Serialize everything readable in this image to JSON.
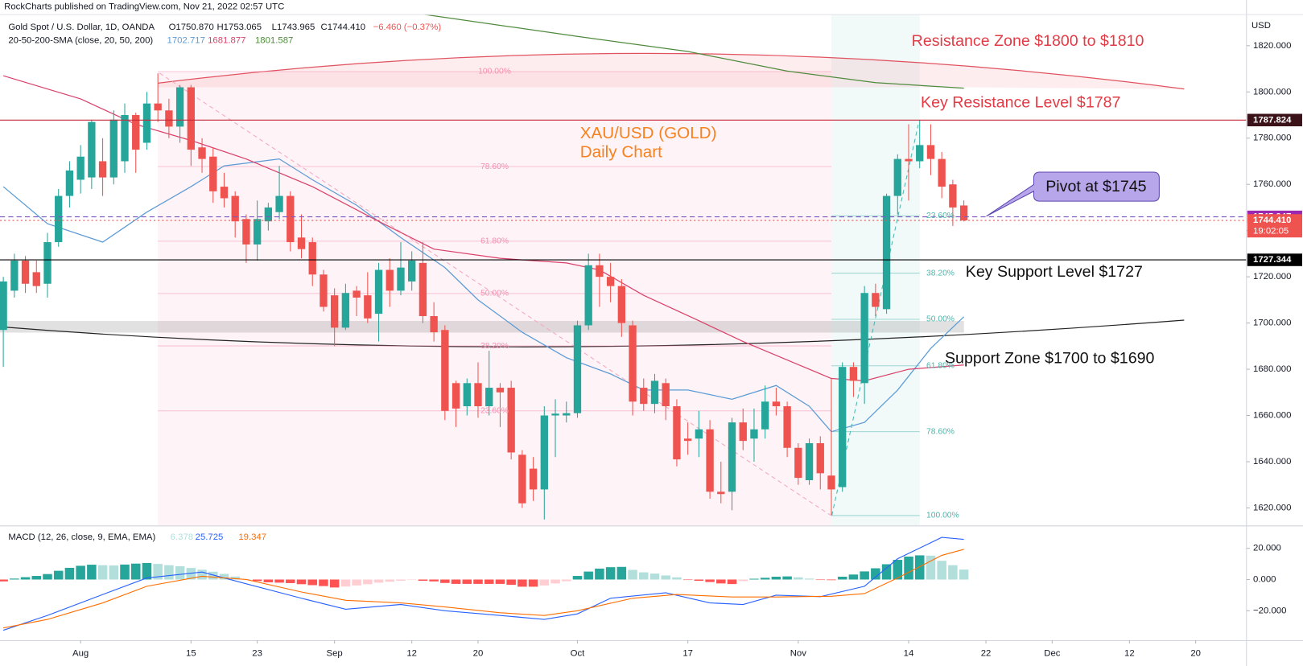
{
  "chart_data": {
    "type": "candlestick",
    "published": "RockCharts published on TradingView.com, Nov 21, 2022 02:57 UTC",
    "title": "Gold Spot / U.S. Dollar, 1D, OANDA",
    "ohlc_legend": [
      "O1750.870",
      "H1753.065",
      "L1743.965",
      "C1744.410",
      "−6.460 (−0.37%)"
    ],
    "y_unit": "USD",
    "up_color": "#26a69a",
    "down_color": "#ef5350",
    "grid": false,
    "xlim": [
      -0.3,
      112.6
    ],
    "xticks": [
      {
        "value": 7,
        "label": "Aug"
      },
      {
        "value": 17,
        "label": "15"
      },
      {
        "value": 23,
        "label": "23"
      },
      {
        "value": 30,
        "label": "Sep"
      },
      {
        "value": 37,
        "label": "12"
      },
      {
        "value": 43,
        "label": "20"
      },
      {
        "value": 52,
        "label": "Oct"
      },
      {
        "value": 62,
        "label": "17"
      },
      {
        "value": 72,
        "label": "Nov"
      },
      {
        "value": 82,
        "label": "14"
      },
      {
        "value": 89,
        "label": "22"
      },
      {
        "value": 95,
        "label": "Dec"
      },
      {
        "value": 102,
        "label": "12"
      },
      {
        "value": 108,
        "label": "20"
      }
    ],
    "ylim": [
      1612.4,
      1833.3
    ],
    "yticks": [
      {
        "value": 1620,
        "label": "1620.000"
      },
      {
        "value": 1640,
        "label": "1640.000"
      },
      {
        "value": 1660,
        "label": "1660.000"
      },
      {
        "value": 1680,
        "label": "1680.000"
      },
      {
        "value": 1700,
        "label": "1700.000"
      },
      {
        "value": 1720,
        "label": "1720.000"
      },
      {
        "value": 1740,
        "label": "1740.000"
      },
      {
        "value": 1760,
        "label": "1760.000"
      },
      {
        "value": 1780,
        "label": "1780.000"
      },
      {
        "value": 1800,
        "label": "1800.000"
      },
      {
        "value": 1820,
        "label": "1820.000"
      }
    ],
    "open": [
      1697,
      1714,
      1727,
      1722,
      1717,
      1735,
      1755,
      1762,
      1763,
      1770,
      1763,
      1770,
      1790,
      1778,
      1795,
      1792,
      1785,
      1802,
      1776,
      1772,
      1759,
      1755,
      1745,
      1734,
      1744,
      1748,
      1755,
      1737,
      1735,
      1721,
      1712,
      1698,
      1714,
      1712,
      1704,
      1723,
      1714,
      1718,
      1726,
      1703,
      1697,
      1674,
      1664,
      1674,
      1664,
      1672,
      1672,
      1643,
      1637,
      1628,
      1660,
      1660,
      1661,
      1699,
      1725,
      1720,
      1716,
      1699,
      1672,
      1665,
      1674,
      1664,
      1650,
      1650,
      1654,
      1627,
      1627,
      1657,
      1650,
      1654,
      1666,
      1664,
      1646,
      1632,
      1648,
      1634,
      1629,
      1681,
      1674,
      1713,
      1706,
      1755,
      1771,
      1770,
      1777,
      1771,
      1760,
      1750.87
    ],
    "high": [
      1720,
      1730,
      1729,
      1727,
      1739,
      1758,
      1770,
      1777,
      1788,
      1780,
      1792,
      1795,
      1791,
      1800,
      1808,
      1797,
      1803,
      1803,
      1780,
      1776,
      1765,
      1757,
      1747,
      1753,
      1752,
      1768,
      1757,
      1747,
      1737,
      1723,
      1715,
      1717,
      1716,
      1722,
      1726,
      1728,
      1735,
      1731,
      1735,
      1709,
      1699,
      1675,
      1676,
      1683,
      1688,
      1674,
      1675,
      1645,
      1642,
      1664,
      1667,
      1666,
      1701,
      1730,
      1730,
      1726,
      1719,
      1701,
      1676,
      1678,
      1676,
      1667,
      1657,
      1662,
      1658,
      1640,
      1659,
      1663,
      1663,
      1673,
      1672,
      1666,
      1648,
      1650,
      1651,
      1676,
      1683,
      1683,
      1716,
      1717,
      1756,
      1773,
      1786,
      1787.8,
      1786,
      1774,
      1762,
      1753.065
    ],
    "low": [
      1681,
      1711,
      1713,
      1713,
      1711,
      1733,
      1750,
      1756,
      1758,
      1755,
      1760,
      1765,
      1765,
      1775,
      1787,
      1780,
      1778,
      1768,
      1765,
      1752,
      1750,
      1737,
      1726,
      1727,
      1740,
      1745,
      1731,
      1728,
      1716,
      1705,
      1690,
      1697,
      1703,
      1700,
      1692,
      1707,
      1712,
      1714,
      1700,
      1692,
      1658,
      1655,
      1660,
      1659,
      1660,
      1655,
      1641,
      1620,
      1623,
      1615,
      1642,
      1657,
      1659,
      1697,
      1707,
      1709,
      1694,
      1660,
      1662,
      1661,
      1658,
      1638,
      1643,
      1642,
      1624,
      1622,
      1619,
      1645,
      1640,
      1650,
      1660,
      1642,
      1630,
      1630,
      1628,
      1617,
      1627,
      1668,
      1665,
      1703,
      1704,
      1747,
      1753,
      1767,
      1764,
      1754,
      1742,
      1743.965
    ],
    "close": [
      1718,
      1727,
      1717,
      1716,
      1735,
      1755,
      1766,
      1772,
      1787,
      1763,
      1788,
      1790,
      1775,
      1795,
      1792,
      1785,
      1802,
      1775,
      1771,
      1757,
      1754,
      1744,
      1734,
      1745,
      1750,
      1755,
      1735,
      1732,
      1721,
      1707,
      1698,
      1713,
      1711,
      1702,
      1723,
      1714,
      1724,
      1727,
      1703,
      1696,
      1662,
      1663,
      1674,
      1664,
      1672,
      1670,
      1644,
      1622,
      1628,
      1660,
      1660.8,
      1661,
      1699,
      1725,
      1720,
      1716,
      1700,
      1666,
      1665,
      1675,
      1664,
      1641,
      1649,
      1654,
      1627,
      1626,
      1657,
      1649,
      1654,
      1666,
      1664,
      1646,
      1633,
      1648,
      1635,
      1628,
      1681,
      1675,
      1713,
      1707,
      1755,
      1771,
      1770,
      1777,
      1771,
      1759,
      1750,
      1744.41
    ],
    "sma": {
      "label": "20-50-200-SMA (close, 20, 50, 200)",
      "series": [
        {
          "color": "#5b9bd5",
          "x": [
            0,
            4,
            9,
            13,
            17,
            20,
            25,
            28,
            32,
            36,
            40,
            43,
            47,
            51,
            55,
            58,
            62,
            66,
            70,
            73,
            75,
            78,
            81,
            84,
            87
          ],
          "values": [
            1759,
            1743,
            1735,
            1748,
            1759,
            1768,
            1771,
            1762,
            1751,
            1737,
            1724,
            1710,
            1696,
            1685,
            1678,
            1671,
            1671,
            1667,
            1673,
            1664,
            1653,
            1657,
            1671,
            1689,
            1702.717
          ]
        },
        {
          "color": "#d9416b",
          "x": [
            0,
            7,
            12,
            17,
            22,
            28,
            34,
            39,
            45,
            51,
            54,
            58,
            63,
            67,
            72,
            75,
            78,
            82,
            87
          ],
          "values": [
            1807,
            1797,
            1786,
            1779,
            1771,
            1759,
            1744,
            1732,
            1728,
            1726,
            1723,
            1712,
            1701,
            1692,
            1682,
            1676,
            1675,
            1680,
            1681.877
          ]
        },
        {
          "color": "#4f8a3c",
          "x": [
            36,
            52,
            62,
            71,
            79,
            87
          ],
          "values": [
            1835,
            1824,
            1817.5,
            1809,
            1804,
            1801.587
          ]
        }
      ]
    },
    "price_lines": [
      {
        "value": 1787.824,
        "color": "#c62838",
        "style": "solid",
        "label_bg": "#3b1217"
      },
      {
        "value": 1745.947,
        "color": "#7e57c2",
        "style": "dashed",
        "label_bg": "#9c27b0"
      },
      {
        "value": 1744.41,
        "label": "1744.410",
        "countdown": "19:02:05",
        "color": "#ef5350",
        "style": "dotted",
        "label_bg": "#ef5350"
      },
      {
        "value": 1727.344,
        "color": "#000000",
        "style": "solid",
        "label_bg": "#000000"
      }
    ],
    "fibs": [
      {
        "color": "#f48fb1",
        "x": [
          14,
          75
        ],
        "shade": "#fce4ec",
        "shade_top": "level",
        "label_position": "center",
        "levels": [
          {
            "label": "100.00%",
            "price": 1808.8
          },
          {
            "label": "78.60%",
            "price": 1767.7
          },
          {
            "label": "61.80%",
            "price": 1735.4
          },
          {
            "label": "50.00%",
            "price": 1712.8
          },
          {
            "label": "38.20%",
            "price": 1690.1
          },
          {
            "label": "23.60%",
            "price": 1662.0
          }
        ]
      },
      {
        "color": "#4db6ac",
        "x": [
          75,
          83
        ],
        "shade": "#e0f2f1",
        "shade_top": "pane",
        "label_position": "right",
        "levels": [
          {
            "label": "23.60%",
            "price": 1746.4
          },
          {
            "label": "38.20%",
            "price": 1721.6
          },
          {
            "label": "50.00%",
            "price": 1701.6
          },
          {
            "label": "61.80%",
            "price": 1681.5
          },
          {
            "label": "78.60%",
            "price": 1653.0
          },
          {
            "label": "100.00%",
            "price": 1616.7
          }
        ]
      }
    ],
    "annotations": [
      "Resistance Zone $1800 to $1810",
      "Key Resistance Level $1787",
      "XAU/USD (GOLD)",
      "Daily Chart",
      "Pivot at $1745",
      "Key Support Level $1727",
      "Support Zone $1700 to $1690"
    ],
    "macd": {
      "label": "MACD (12, 26, close, 9, EMA, EMA)",
      "ylim": [
        -38.9,
        34.1
      ],
      "yticks": [
        {
          "value": 20,
          "label": "20.000"
        },
        {
          "value": 0,
          "label": "0.000"
        },
        {
          "value": -20,
          "label": "−20.000"
        }
      ],
      "histogram": {
        "colors": {
          "rising_positive": "#26a69a",
          "falling_positive": "#b2dfdb",
          "falling_negative": "#ff5252",
          "rising_negative": "#ffcdd2"
        },
        "values": [
          -1.2,
          0.6,
          1.5,
          2.3,
          3.5,
          5.6,
          7.5,
          8.8,
          9.5,
          9.2,
          9.0,
          9.6,
          10.2,
          10.6,
          10.0,
          9.2,
          8.5,
          7.4,
          6.3,
          5.0,
          3.6,
          1.9,
          0.3,
          -1.0,
          -1.8,
          -2.0,
          -2.3,
          -3.0,
          -3.6,
          -4.2,
          -5.1,
          -4.5,
          -3.8,
          -3.0,
          -2.0,
          -1.4,
          -0.8,
          -0.3,
          -0.8,
          -1.2,
          -2.2,
          -2.8,
          -2.8,
          -2.8,
          -2.8,
          -2.8,
          -3.4,
          -4.6,
          -4.6,
          -3.8,
          -2.5,
          -1.1,
          2.3,
          5.1,
          7.0,
          7.9,
          8.1,
          6.2,
          4.6,
          3.8,
          2.6,
          1.4,
          -0.3,
          -0.8,
          -1.6,
          -2.5,
          -2.9,
          -1.0,
          0.5,
          1.1,
          1.8,
          2.0,
          1.4,
          0.6,
          -0.3,
          -0.4,
          1.8,
          3.2,
          5.2,
          7.2,
          9.8,
          12.6,
          14.7,
          15.5,
          15.3,
          12.0,
          9.2,
          6.378
        ]
      },
      "lines": [
        {
          "color": "#2962ff",
          "x": [
            0,
            4,
            9,
            13,
            18,
            22,
            27,
            31,
            36,
            40,
            45,
            49,
            52,
            55,
            60,
            64,
            67,
            70,
            74,
            78,
            81,
            85,
            87
          ],
          "values": [
            -32.5,
            -23,
            -9.6,
            1,
            4.8,
            -2.7,
            -12,
            -19,
            -16,
            -20,
            -23,
            -25.6,
            -22,
            -12,
            -8.5,
            -15,
            -16,
            -10,
            -11,
            -4.3,
            13.3,
            27,
            25.725
          ]
        },
        {
          "color": "#ff6d00",
          "x": [
            0,
            4,
            9,
            13,
            18,
            22,
            27,
            31,
            36,
            40,
            45,
            49,
            52,
            57,
            61,
            66,
            70,
            75,
            78,
            81,
            85,
            87
          ],
          "values": [
            -31,
            -25.6,
            -15,
            -4.3,
            2.1,
            0,
            -8,
            -13.3,
            -15,
            -17.6,
            -21.3,
            -23,
            -20,
            -12,
            -9.6,
            -11.2,
            -11.2,
            -10.7,
            -9,
            1,
            15.5,
            19.347
          ]
        }
      ]
    }
  }
}
